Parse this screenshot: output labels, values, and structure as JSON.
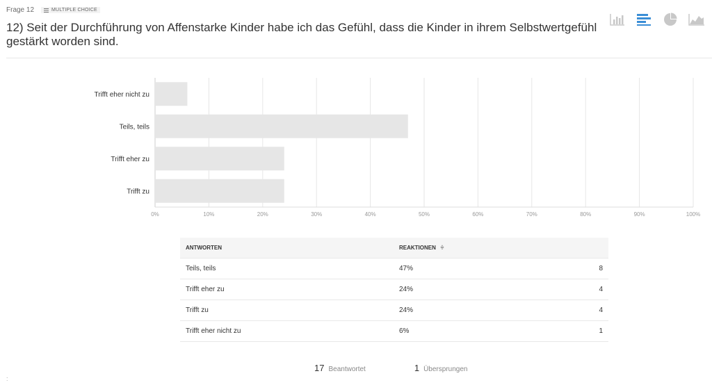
{
  "question": {
    "number_label": "Frage 12",
    "type_label": "MULTIPLE CHOICE",
    "title": "12) Seit der Durchführung von Affenstarke Kinder habe ich das Gefühl, dass die Kinder in ihrem Selbstwertgefühl gestärkt worden sind."
  },
  "view_buttons": [
    {
      "name": "vertical-bar-chart-icon",
      "active": false
    },
    {
      "name": "horizontal-bar-chart-icon",
      "active": true
    },
    {
      "name": "pie-chart-icon",
      "active": false
    },
    {
      "name": "area-chart-icon",
      "active": false
    }
  ],
  "colors": {
    "bar": "#e6e6e6",
    "grid": "#e6e6e6",
    "axis_text": "#999999",
    "active_icon": "#3b8ed6",
    "inactive_icon": "#c8c8c8"
  },
  "chart_data": {
    "type": "bar",
    "orientation": "horizontal",
    "categories": [
      "Trifft eher nicht zu",
      "Teils, teils",
      "Trifft eher zu",
      "Trifft zu"
    ],
    "values": [
      6,
      47,
      24,
      24
    ],
    "value_unit": "%",
    "xlim": [
      0,
      100
    ],
    "xticks": [
      "0%",
      "10%",
      "20%",
      "30%",
      "40%",
      "50%",
      "60%",
      "70%",
      "80%",
      "90%",
      "100%"
    ],
    "grid": true
  },
  "table": {
    "headers": {
      "answers": "ANTWORTEN",
      "responses": "REAKTIONEN",
      "sort_icon": "≑"
    },
    "rows": [
      {
        "answer": "Teils, teils",
        "percent": "47%",
        "count": "8"
      },
      {
        "answer": "Trifft eher zu",
        "percent": "24%",
        "count": "4"
      },
      {
        "answer": "Trifft zu",
        "percent": "24%",
        "count": "4"
      },
      {
        "answer": "Trifft eher nicht zu",
        "percent": "6%",
        "count": "1"
      }
    ]
  },
  "totals": {
    "answered_count": "17",
    "answered_label": "Beantwortet",
    "skipped_count": "1",
    "skipped_label": "Übersprungen"
  },
  "corner_mark": ":"
}
